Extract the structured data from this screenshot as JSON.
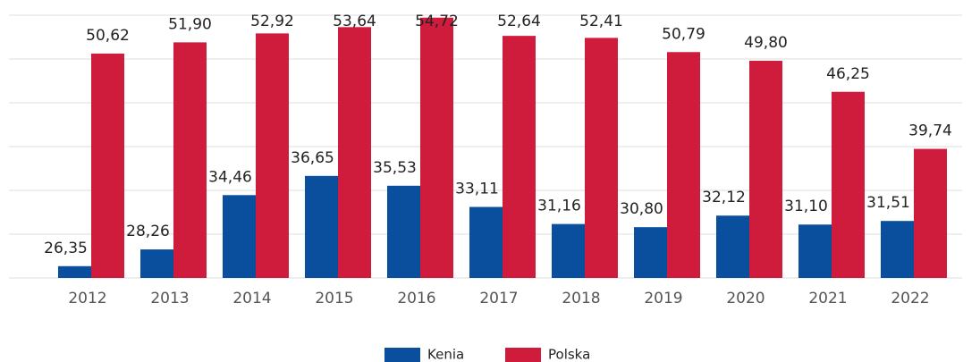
{
  "chart_data": {
    "type": "bar",
    "categories": [
      "2012",
      "2013",
      "2014",
      "2015",
      "2016",
      "2017",
      "2018",
      "2019",
      "2020",
      "2021",
      "2022"
    ],
    "series": [
      {
        "name": "Kenia",
        "color": "#0a4f9e",
        "values": [
          26.35,
          28.26,
          34.46,
          36.65,
          35.53,
          33.11,
          31.16,
          30.8,
          32.12,
          31.1,
          31.51
        ],
        "value_labels": [
          "26,35",
          "28,26",
          "34,46",
          "36,65",
          "35,53",
          "33,11",
          "31,16",
          "30,80",
          "32,12",
          "31,10",
          "31,51"
        ]
      },
      {
        "name": "Polska",
        "color": "#d01c3c",
        "values": [
          50.62,
          51.9,
          52.92,
          53.64,
          54.72,
          52.64,
          52.41,
          50.79,
          49.8,
          46.25,
          39.74
        ],
        "value_labels": [
          "50,62",
          "51,90",
          "52,92",
          "53,64",
          "54,72",
          "52,64",
          "52,41",
          "50,79",
          "49,80",
          "46,25",
          "39,74"
        ]
      }
    ],
    "ylim": [
      25,
      55
    ],
    "yticks": [
      25,
      30,
      35,
      40,
      45,
      50,
      55
    ],
    "grid": true,
    "legend": "bottom"
  }
}
